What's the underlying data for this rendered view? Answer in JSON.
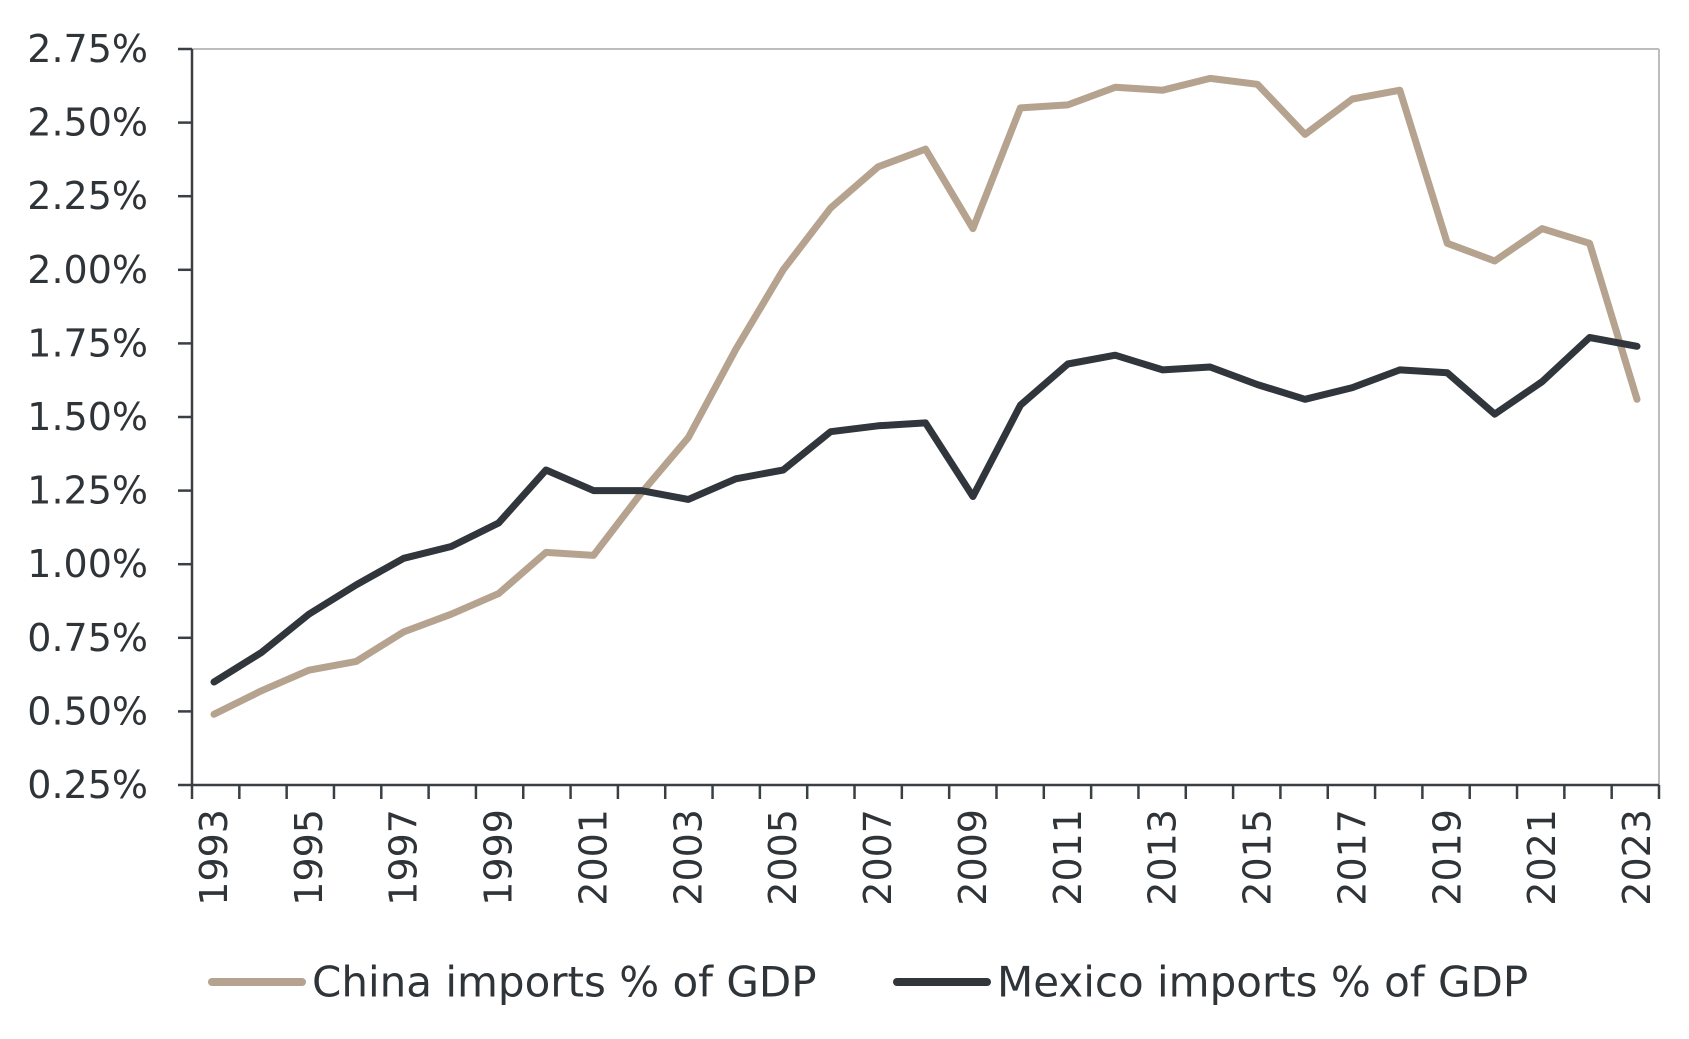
{
  "chart_data": {
    "type": "line",
    "title": "",
    "xlabel": "",
    "ylabel": "",
    "x": [
      1993,
      1994,
      1995,
      1996,
      1997,
      1998,
      1999,
      2000,
      2001,
      2002,
      2003,
      2004,
      2005,
      2006,
      2007,
      2008,
      2009,
      2010,
      2011,
      2012,
      2013,
      2014,
      2015,
      2016,
      2017,
      2018,
      2019,
      2020,
      2021,
      2022,
      2023
    ],
    "x_tick_labels": [
      "1993",
      "1995",
      "1997",
      "1999",
      "2001",
      "2003",
      "2005",
      "2007",
      "2009",
      "2011",
      "2013",
      "2015",
      "2017",
      "2019",
      "2021",
      "2023"
    ],
    "ylim": [
      0.25,
      2.75
    ],
    "y_ticks": [
      0.25,
      0.5,
      0.75,
      1.0,
      1.25,
      1.5,
      1.75,
      2.0,
      2.25,
      2.5,
      2.75
    ],
    "y_tick_labels": [
      "0.25%",
      "0.50%",
      "0.75%",
      "1.00%",
      "1.25%",
      "1.50%",
      "1.75%",
      "2.00%",
      "2.25%",
      "2.50%",
      "2.75%"
    ],
    "grid": false,
    "legend_position": "bottom",
    "series": [
      {
        "name": "China imports % of GDP",
        "color": "#b5a38f",
        "values": [
          0.49,
          0.57,
          0.64,
          0.67,
          0.77,
          0.83,
          0.9,
          1.04,
          1.03,
          1.24,
          1.43,
          1.73,
          2.0,
          2.21,
          2.35,
          2.41,
          2.14,
          2.55,
          2.56,
          2.62,
          2.61,
          2.65,
          2.63,
          2.46,
          2.58,
          2.61,
          2.09,
          2.03,
          2.14,
          2.09,
          1.56
        ]
      },
      {
        "name": "Mexico imports % of GDP",
        "color": "#30363b",
        "values": [
          0.6,
          0.7,
          0.83,
          0.93,
          1.02,
          1.06,
          1.14,
          1.32,
          1.25,
          1.25,
          1.22,
          1.29,
          1.32,
          1.45,
          1.47,
          1.48,
          1.23,
          1.54,
          1.68,
          1.71,
          1.66,
          1.67,
          1.61,
          1.56,
          1.6,
          1.66,
          1.65,
          1.51,
          1.62,
          1.77,
          1.74
        ]
      }
    ]
  }
}
